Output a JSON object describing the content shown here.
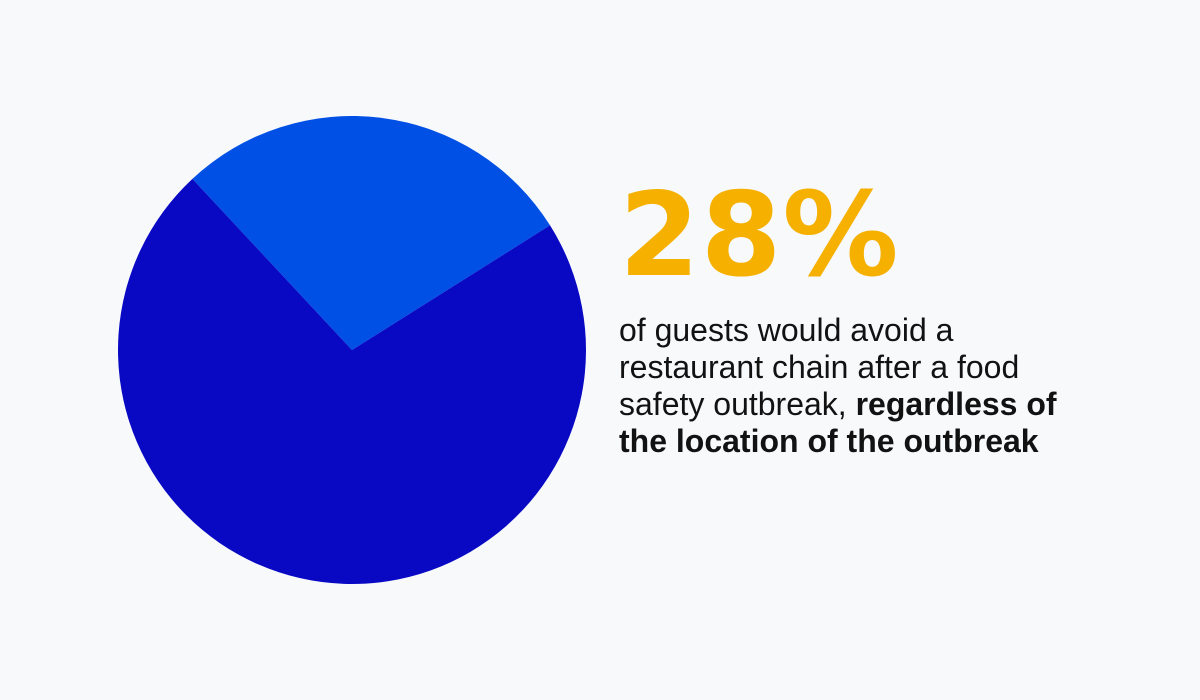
{
  "chart_data": {
    "type": "pie",
    "values": [
      28,
      72
    ],
    "colors": [
      "#0050e6",
      "#0909c4"
    ],
    "start_angle_deg": -43
  },
  "stat": {
    "value": "28%",
    "description": "of guests would avoid a restaurant chain after a food safety outbreak,",
    "emphasis": "regardless of the location of the outbreak"
  },
  "colors": {
    "background": "#f8f9fb",
    "accent": "#f5b000",
    "text": "#121212"
  }
}
